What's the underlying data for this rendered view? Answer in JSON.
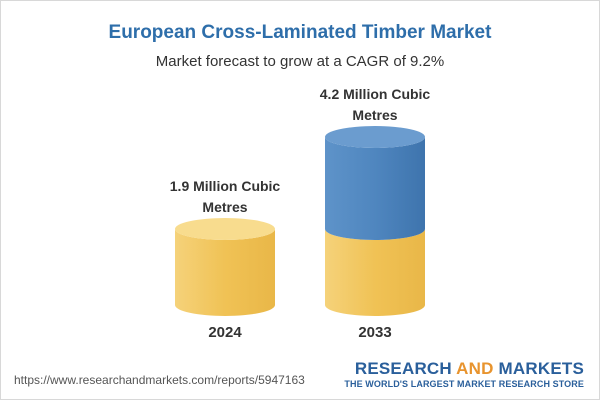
{
  "chart_data": {
    "type": "bar",
    "title": "European Cross-Laminated Timber Market",
    "subtitle": "Market forecast to grow at a CAGR of 9.2%",
    "categories": [
      "2024",
      "2033"
    ],
    "values": [
      1.9,
      4.2
    ],
    "unit": "Million Cubic Metres",
    "data_labels": [
      "1.9 Million Cubic Metres",
      "4.2 Million Cubic Metres"
    ],
    "colors": {
      "base": "#f3c75c",
      "increase": "#4a80b8"
    }
  },
  "footer": {
    "url": "https://www.researchandmarkets.com/reports/5947163",
    "brand_part1": "RESEARCH ",
    "brand_part2": "AND",
    "brand_part3": " MARKETS",
    "tagline": "THE WORLD'S LARGEST MARKET RESEARCH STORE"
  }
}
